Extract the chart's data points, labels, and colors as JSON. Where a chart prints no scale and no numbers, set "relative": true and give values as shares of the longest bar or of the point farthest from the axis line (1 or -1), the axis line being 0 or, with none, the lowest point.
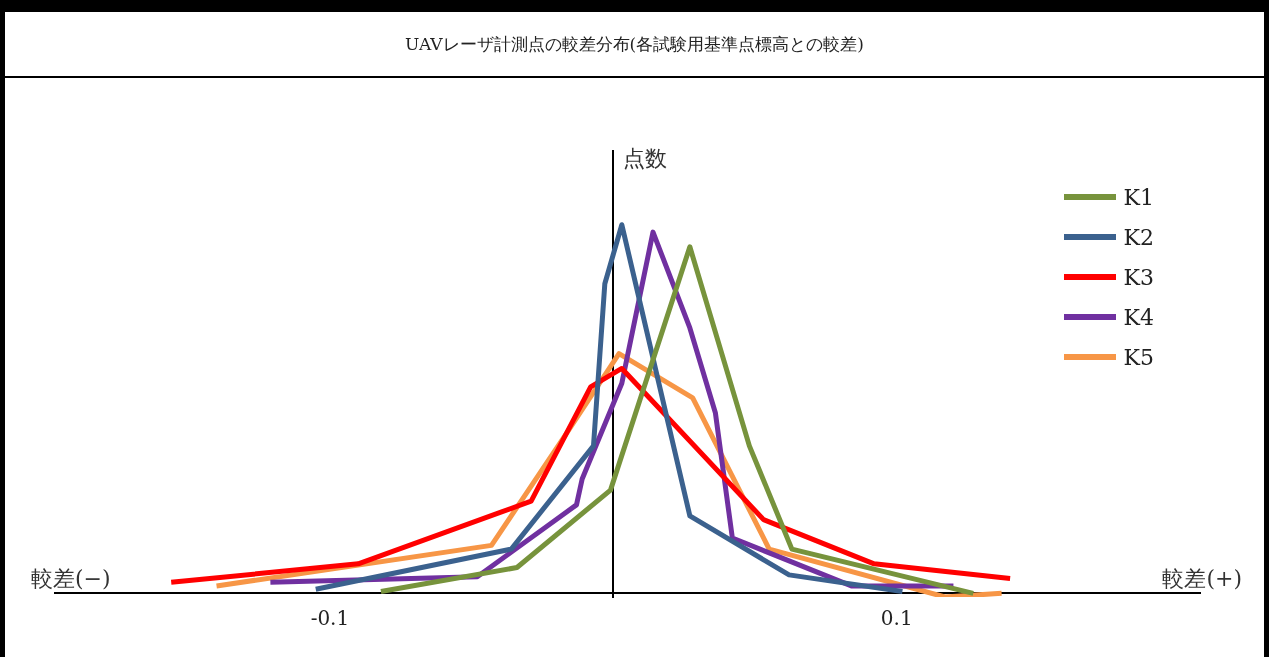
{
  "chart_data": {
    "type": "line",
    "title": "UAVレーザ計測点の較差分布(各試験用基準点標高との較差)",
    "ylabel": "点数",
    "annotations": [
      "較差(−)",
      "較差(+)"
    ],
    "relative": true,
    "xlim": [
      -0.197,
      0.207
    ],
    "xticks": [
      -0.1,
      0.1
    ],
    "grid": false,
    "legend": "top right",
    "marker": "none",
    "line_style": "solid",
    "series": [
      {
        "name": "K1",
        "color": "#77933c",
        "x": [
          -0.082,
          -0.034,
          -0.001,
          0.027,
          0.048,
          0.063,
          0.127
        ],
        "values": [
          0.005,
          0.07,
          0.28,
          0.94,
          0.4,
          0.12,
          0
        ]
      },
      {
        "name": "K2",
        "color": "#3b618e",
        "x": [
          -0.105,
          -0.036,
          -0.007,
          -0.003,
          0.003,
          0.027,
          0.062,
          0.102
        ],
        "values": [
          0.011,
          0.12,
          0.4,
          0.84,
          1,
          0.21,
          0.05,
          0.005
        ]
      },
      {
        "name": "K3",
        "color": "#ff0000",
        "x": [
          -0.156,
          -0.09,
          -0.029,
          -0.008,
          0.003,
          0.053,
          0.092,
          0.14
        ],
        "values": [
          0.03,
          0.08,
          0.25,
          0.56,
          0.61,
          0.2,
          0.08,
          0.04
        ]
      },
      {
        "name": "K4",
        "color": "#7030a0",
        "x": [
          -0.121,
          -0.048,
          -0.013,
          -0.011,
          0.003,
          0.014,
          0.027,
          0.036,
          0.042,
          0.084,
          0.12
        ],
        "values": [
          0.03,
          0.045,
          0.24,
          0.31,
          0.57,
          0.98,
          0.72,
          0.49,
          0.15,
          0.02,
          0.02
        ]
      },
      {
        "name": "K5",
        "color": "#f79646",
        "x": [
          -0.14,
          -0.043,
          -0.016,
          0.002,
          0.028,
          0.055,
          0.117,
          0.137
        ],
        "values": [
          0.02,
          0.13,
          0.44,
          0.65,
          0.53,
          0.12,
          -0.01,
          0
        ]
      }
    ]
  }
}
